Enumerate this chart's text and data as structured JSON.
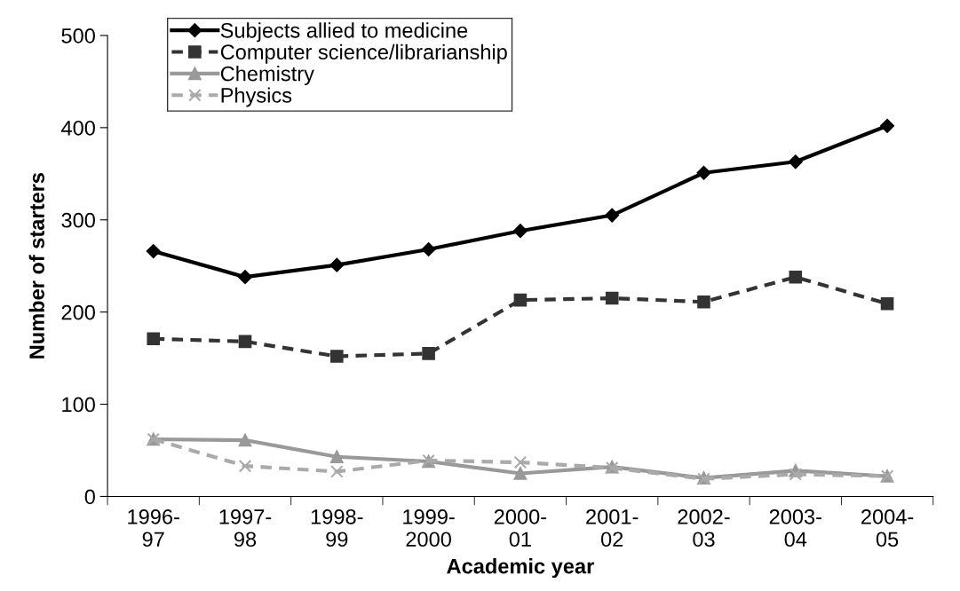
{
  "chart_data": {
    "type": "line",
    "xlabel": "Academic year",
    "ylabel": "Number of starters",
    "categories": [
      "1996-\n97",
      "1997-\n98",
      "1998-\n99",
      "1999-\n2000",
      "2000-\n01",
      "2001-\n02",
      "2002-\n03",
      "2003-\n04",
      "2004-\n05"
    ],
    "series": [
      {
        "name": "Subjects allied to medicine",
        "color": "#000000",
        "marker": "diamond",
        "line_style": "solid",
        "values": [
          266,
          238,
          251,
          268,
          288,
          305,
          351,
          363,
          402
        ]
      },
      {
        "name": "Computer science/librarianship",
        "color": "#333333",
        "marker": "square",
        "line_style": "dashed",
        "values": [
          171,
          168,
          152,
          155,
          213,
          215,
          211,
          238,
          209
        ]
      },
      {
        "name": "Chemistry",
        "color": "#999999",
        "marker": "triangle",
        "line_style": "solid",
        "values": [
          62,
          61,
          43,
          38,
          25,
          32,
          20,
          28,
          22
        ]
      },
      {
        "name": "Physics",
        "color": "#aaaaaa",
        "marker": "cross",
        "line_style": "dashed",
        "values": [
          62,
          33,
          27,
          39,
          37,
          31,
          19,
          24,
          22
        ]
      }
    ],
    "ylim": [
      0,
      500
    ],
    "yticks": [
      0,
      100,
      200,
      300,
      400,
      500
    ],
    "grid": false,
    "legend": "top left"
  }
}
